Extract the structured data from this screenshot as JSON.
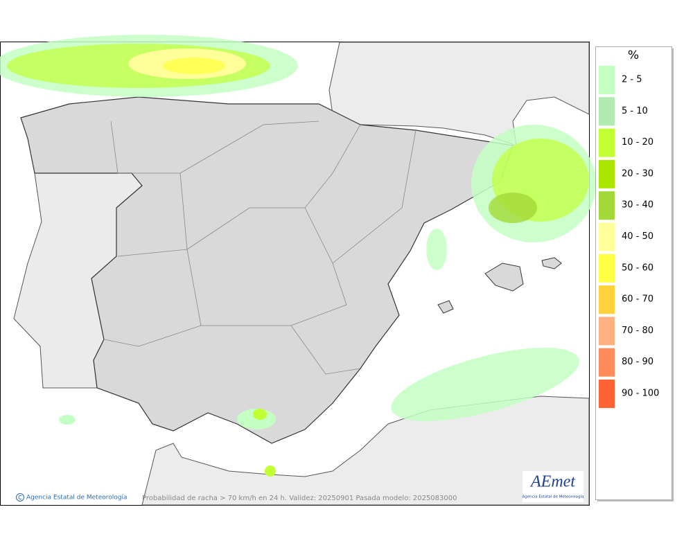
{
  "legend": {
    "title": "%",
    "entries": [
      {
        "label": "2 - 5",
        "color": "#c4ffc4"
      },
      {
        "label": "5 - 10",
        "color": "#b2ebb2"
      },
      {
        "label": "10 - 20",
        "color": "#c2ff33"
      },
      {
        "label": "20 - 30",
        "color": "#aae600"
      },
      {
        "label": "30 - 40",
        "color": "#a2d936"
      },
      {
        "label": "40 - 50",
        "color": "#ffff99"
      },
      {
        "label": "50 - 60",
        "color": "#ffff44"
      },
      {
        "label": "60 - 70",
        "color": "#ffd23c"
      },
      {
        "label": "70 - 80",
        "color": "#ffb080"
      },
      {
        "label": "80 - 90",
        "color": "#ff8c5a"
      },
      {
        "label": "90 - 100",
        "color": "#ff6333"
      }
    ]
  },
  "footer": {
    "credit": "Agencia Estatal de Meteorología",
    "caption": "Probabilidad de racha > 70 km/h en 24 h. Validez: 20250901 Pasada modelo: 2025083000"
  },
  "logo": {
    "name": "AEmet",
    "subtitle": "Agencia Estatal de Meteorología"
  }
}
